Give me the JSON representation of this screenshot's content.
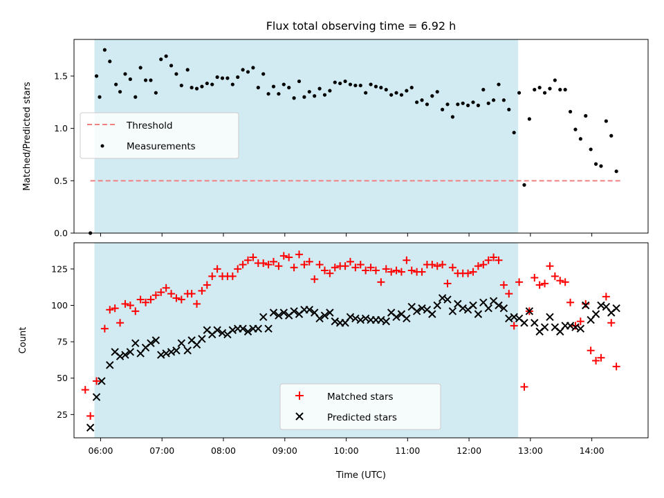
{
  "colors": {
    "span": "#add8e6",
    "threshold": "#f08080",
    "matched": "#ff0000",
    "predicted": "#000000",
    "measurement": "#000000"
  },
  "chart_data": [
    {
      "type": "scatter",
      "title": "Flux total observing time = 6.92 h",
      "xlabel": "",
      "ylabel": "Matched/Predicted stars",
      "xlim": [
        "05:34",
        "14:55"
      ],
      "ylim": [
        0,
        1.85
      ],
      "yticks": [
        "0.0",
        "0.5",
        "1.0",
        "1.5"
      ],
      "observing_span": [
        "05:54",
        "12:48"
      ],
      "grid": false,
      "legend": {
        "placement": "center-left",
        "entries": [
          "Threshold",
          "Measurements"
        ]
      },
      "threshold": {
        "name": "Threshold",
        "value": 0.5,
        "x_range": [
          "05:50",
          "14:28"
        ]
      },
      "series": [
        {
          "name": "Measurements",
          "x": [
            "05:50",
            "05:56",
            "05:59",
            "06:04",
            "06:09",
            "06:15",
            "06:19",
            "06:24",
            "06:29",
            "06:34",
            "06:39",
            "06:44",
            "06:49",
            "06:54",
            "06:59",
            "07:04",
            "07:09",
            "07:14",
            "07:19",
            "07:25",
            "07:29",
            "07:34",
            "07:39",
            "07:44",
            "07:49",
            "07:54",
            "07:59",
            "08:04",
            "08:09",
            "08:14",
            "08:19",
            "08:24",
            "08:29",
            "08:34",
            "08:39",
            "08:44",
            "08:49",
            "08:54",
            "08:59",
            "09:04",
            "09:09",
            "09:14",
            "09:19",
            "09:24",
            "09:29",
            "09:34",
            "09:39",
            "09:44",
            "09:49",
            "09:54",
            "09:59",
            "10:04",
            "10:09",
            "10:14",
            "10:19",
            "10:24",
            "10:29",
            "10:34",
            "10:39",
            "10:44",
            "10:49",
            "10:54",
            "10:59",
            "11:04",
            "11:09",
            "11:14",
            "11:19",
            "11:24",
            "11:29",
            "11:34",
            "11:39",
            "11:44",
            "11:49",
            "11:54",
            "11:59",
            "12:04",
            "12:09",
            "12:14",
            "12:19",
            "12:24",
            "12:29",
            "12:34",
            "12:39",
            "12:44",
            "12:49",
            "12:54",
            "12:59",
            "13:04",
            "13:09",
            "13:14",
            "13:19",
            "13:24",
            "13:29",
            "13:34",
            "13:39",
            "13:44",
            "13:49",
            "13:54",
            "13:59",
            "14:04",
            "14:09",
            "14:14",
            "14:19",
            "14:24"
          ],
          "y": [
            0.0,
            1.5,
            1.3,
            1.75,
            1.64,
            1.42,
            1.35,
            1.52,
            1.47,
            1.3,
            1.58,
            1.46,
            1.46,
            1.34,
            1.66,
            1.69,
            1.6,
            1.52,
            1.41,
            1.56,
            1.39,
            1.38,
            1.4,
            1.43,
            1.42,
            1.49,
            1.48,
            1.48,
            1.42,
            1.49,
            1.56,
            1.54,
            1.58,
            1.39,
            1.52,
            1.33,
            1.4,
            1.33,
            1.42,
            1.39,
            1.29,
            1.45,
            1.3,
            1.35,
            1.31,
            1.38,
            1.32,
            1.36,
            1.44,
            1.43,
            1.45,
            1.42,
            1.41,
            1.41,
            1.34,
            1.42,
            1.4,
            1.39,
            1.37,
            1.32,
            1.34,
            1.32,
            1.36,
            1.39,
            1.25,
            1.27,
            1.23,
            1.31,
            1.35,
            1.18,
            1.23,
            1.11,
            1.23,
            1.24,
            1.22,
            1.25,
            1.22,
            1.37,
            1.24,
            1.27,
            1.42,
            1.27,
            1.18,
            0.96,
            1.34,
            0.46,
            1.09,
            1.37,
            1.39,
            1.34,
            1.38,
            1.46,
            1.37,
            1.37,
            1.16,
            0.99,
            0.9,
            1.12,
            0.8,
            0.66,
            0.64,
            1.07,
            0.93,
            0.59
          ]
        }
      ]
    },
    {
      "type": "scatter",
      "title": "",
      "xlabel": "Time (UTC)",
      "ylabel": "Count",
      "xlim": [
        "05:34",
        "14:55"
      ],
      "ylim": [
        9,
        143
      ],
      "xticks": [
        "06:00",
        "07:00",
        "08:00",
        "09:00",
        "10:00",
        "11:00",
        "12:00",
        "13:00",
        "14:00"
      ],
      "yticks": [
        "25",
        "50",
        "75",
        "100",
        "125"
      ],
      "observing_span": [
        "05:54",
        "12:48"
      ],
      "grid": false,
      "legend": {
        "placement": "bottom-center",
        "entries": [
          "Matched stars",
          "Predicted stars"
        ]
      },
      "series": [
        {
          "name": "Matched stars",
          "marker": "+",
          "x": [
            "05:45",
            "05:50",
            "05:56",
            "06:04",
            "06:09",
            "06:14",
            "06:19",
            "06:24",
            "06:29",
            "06:34",
            "06:39",
            "06:44",
            "06:49",
            "06:54",
            "06:59",
            "07:04",
            "07:09",
            "07:14",
            "07:19",
            "07:25",
            "07:29",
            "07:34",
            "07:39",
            "07:44",
            "07:49",
            "07:54",
            "07:59",
            "08:04",
            "08:09",
            "08:14",
            "08:19",
            "08:24",
            "08:29",
            "08:34",
            "08:39",
            "08:44",
            "08:49",
            "08:54",
            "08:59",
            "09:04",
            "09:09",
            "09:14",
            "09:19",
            "09:24",
            "09:29",
            "09:34",
            "09:39",
            "09:44",
            "09:49",
            "09:54",
            "09:59",
            "10:04",
            "10:09",
            "10:14",
            "10:19",
            "10:24",
            "10:29",
            "10:34",
            "10:39",
            "10:44",
            "10:49",
            "10:54",
            "10:59",
            "11:04",
            "11:09",
            "11:14",
            "11:19",
            "11:24",
            "11:29",
            "11:34",
            "11:39",
            "11:44",
            "11:49",
            "11:54",
            "11:59",
            "12:04",
            "12:09",
            "12:14",
            "12:19",
            "12:24",
            "12:29",
            "12:34",
            "12:39",
            "12:44",
            "12:49",
            "12:54",
            "12:59",
            "13:04",
            "13:09",
            "13:14",
            "13:19",
            "13:24",
            "13:29",
            "13:34",
            "13:39",
            "13:44",
            "13:49",
            "13:54",
            "13:59",
            "14:04",
            "14:09",
            "14:14",
            "14:19",
            "14:24"
          ],
          "y": [
            42,
            24,
            48,
            84,
            97,
            98,
            88,
            101,
            100,
            96,
            104,
            102,
            104,
            107,
            109,
            112,
            108,
            105,
            104,
            108,
            108,
            101,
            110,
            114,
            120,
            125,
            120,
            120,
            120,
            125,
            128,
            131,
            133,
            129,
            129,
            128,
            130,
            127,
            134,
            133,
            126,
            135,
            128,
            130,
            118,
            128,
            124,
            122,
            126,
            127,
            127,
            130,
            126,
            128,
            124,
            126,
            124,
            116,
            125,
            123,
            124,
            123,
            131,
            124,
            123,
            123,
            128,
            128,
            127,
            128,
            115,
            126,
            122,
            122,
            122,
            123,
            127,
            128,
            131,
            133,
            131,
            114,
            108,
            86,
            116,
            44,
            96,
            119,
            114,
            115,
            127,
            120,
            117,
            116,
            102,
            86,
            89,
            101,
            69,
            62,
            64,
            106,
            88,
            58
          ]
        },
        {
          "name": "Predicted stars",
          "marker": "x",
          "x": [
            "05:50",
            "05:56",
            "06:01",
            "06:09",
            "06:14",
            "06:19",
            "06:24",
            "06:29",
            "06:34",
            "06:39",
            "06:44",
            "06:49",
            "06:54",
            "06:59",
            "07:04",
            "07:09",
            "07:14",
            "07:19",
            "07:25",
            "07:29",
            "07:34",
            "07:39",
            "07:44",
            "07:49",
            "07:54",
            "07:59",
            "08:04",
            "08:09",
            "08:14",
            "08:19",
            "08:24",
            "08:29",
            "08:34",
            "08:39",
            "08:44",
            "08:49",
            "08:54",
            "08:59",
            "09:04",
            "09:09",
            "09:14",
            "09:19",
            "09:24",
            "09:29",
            "09:34",
            "09:39",
            "09:44",
            "09:49",
            "09:54",
            "09:59",
            "10:04",
            "10:09",
            "10:14",
            "10:19",
            "10:24",
            "10:29",
            "10:34",
            "10:39",
            "10:44",
            "10:49",
            "10:54",
            "10:59",
            "11:04",
            "11:09",
            "11:14",
            "11:19",
            "11:24",
            "11:29",
            "11:34",
            "11:39",
            "11:44",
            "11:49",
            "11:54",
            "11:59",
            "12:04",
            "12:09",
            "12:14",
            "12:19",
            "12:24",
            "12:29",
            "12:34",
            "12:39",
            "12:44",
            "12:49",
            "12:54",
            "12:59",
            "13:04",
            "13:09",
            "13:14",
            "13:19",
            "13:24",
            "13:29",
            "13:34",
            "13:39",
            "13:44",
            "13:49",
            "13:54",
            "13:59",
            "14:04",
            "14:09",
            "14:14",
            "14:19",
            "14:24"
          ],
          "y": [
            16,
            37,
            48,
            59,
            68,
            65,
            66,
            68,
            74,
            67,
            71,
            74,
            76,
            66,
            67,
            68,
            69,
            74,
            69,
            76,
            73,
            77,
            83,
            80,
            83,
            81,
            80,
            83,
            84,
            84,
            82,
            84,
            84,
            92,
            84,
            95,
            93,
            95,
            93,
            96,
            94,
            97,
            97,
            95,
            91,
            93,
            95,
            89,
            88,
            88,
            92,
            91,
            90,
            91,
            90,
            90,
            90,
            89,
            95,
            92,
            94,
            91,
            99,
            96,
            98,
            97,
            94,
            100,
            105,
            104,
            96,
            101,
            98,
            97,
            100,
            94,
            102,
            98,
            103,
            100,
            98,
            91,
            92,
            91,
            88,
            96,
            88,
            82,
            85,
            92,
            85,
            82,
            86,
            86,
            85,
            84,
            100,
            90,
            94,
            100,
            99,
            95,
            98
          ]
        }
      ]
    }
  ]
}
